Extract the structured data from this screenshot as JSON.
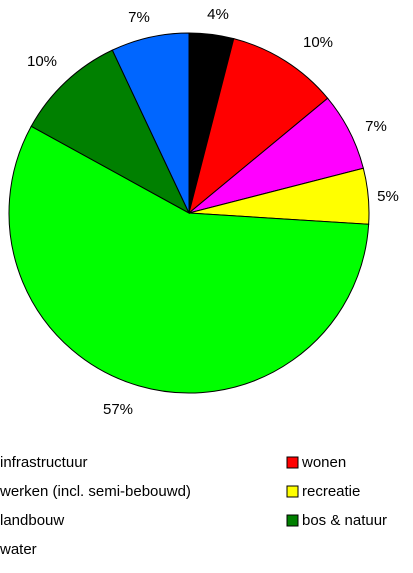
{
  "chart_data": {
    "type": "pie",
    "categories": [
      "infrastructuur",
      "wonen",
      "werken (incl. semi-bebouwd)",
      "recreatie",
      "landbouw",
      "bos & natuur",
      "water"
    ],
    "values": [
      4,
      10,
      7,
      5,
      57,
      10,
      7
    ],
    "value_labels": [
      "4%",
      "10%",
      "7%",
      "5%",
      "57%",
      "10%",
      "7%"
    ],
    "colors": [
      "#000000",
      "#ff0000",
      "#ff00ff",
      "#ffff00",
      "#00ff00",
      "#008000",
      "#0066ff"
    ]
  }
}
